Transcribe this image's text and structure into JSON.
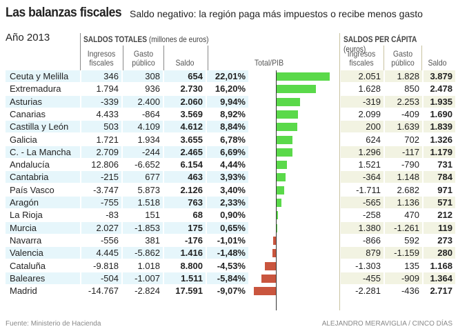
{
  "title": "Las balanzas fiscales",
  "subtitle": "Saldo negativo: la región paga más impuestos o recibe menos gasto",
  "year": "Año 2013",
  "section_totales": {
    "bold": "SALDOS TOTALES",
    "rest": " (millones de euros)"
  },
  "section_percapita": {
    "bold": "SALDOS PER CÁPITA",
    "rest": " (euros)"
  },
  "headers": {
    "ingresos_1": "Ingresos",
    "ingresos_2": "fiscales",
    "gasto_1": "Gasto",
    "gasto_2": "público",
    "saldo": "Saldo",
    "pib": "Total/PIB"
  },
  "colors": {
    "positive": "#5ad94a",
    "negative": "#c9553e",
    "row_alt_left": "#e6f6fb",
    "row_alt_right": "#f2f3e2"
  },
  "chart_data": {
    "type": "table",
    "bar_column": "Total/PIB",
    "rows": [
      {
        "region": "Ceuta y Melilla",
        "ingresos": "346",
        "gasto": "308",
        "saldo": "654",
        "pib": "22,01%",
        "pib_value": 22.01,
        "pc_ingresos": "2.051",
        "pc_gasto": "1.828",
        "pc_saldo": "3.879"
      },
      {
        "region": "Extremadura",
        "ingresos": "1.794",
        "gasto": "936",
        "saldo": "2.730",
        "pib": "16,20%",
        "pib_value": 16.2,
        "pc_ingresos": "1.628",
        "pc_gasto": "850",
        "pc_saldo": "2.478"
      },
      {
        "region": "Asturias",
        "ingresos": "-339",
        "gasto": "2.400",
        "saldo": "2.060",
        "pib": "9,94%",
        "pib_value": 9.94,
        "pc_ingresos": "-319",
        "pc_gasto": "2.253",
        "pc_saldo": "1.935"
      },
      {
        "region": "Canarias",
        "ingresos": "4.433",
        "gasto": "-864",
        "saldo": "3.569",
        "pib": "8,92%",
        "pib_value": 8.92,
        "pc_ingresos": "2.099",
        "pc_gasto": "-409",
        "pc_saldo": "1.690"
      },
      {
        "region": "Castilla y León",
        "ingresos": "503",
        "gasto": "4.109",
        "saldo": "4.612",
        "pib": "8,84%",
        "pib_value": 8.84,
        "pc_ingresos": "200",
        "pc_gasto": "1.639",
        "pc_saldo": "1.839"
      },
      {
        "region": "Galicia",
        "ingresos": "1.721",
        "gasto": "1.934",
        "saldo": "3.655",
        "pib": "6,78%",
        "pib_value": 6.78,
        "pc_ingresos": "624",
        "pc_gasto": "702",
        "pc_saldo": "1.326"
      },
      {
        "region": "C. - La Mancha",
        "ingresos": "2.709",
        "gasto": "-244",
        "saldo": "2.465",
        "pib": "6,69%",
        "pib_value": 6.69,
        "pc_ingresos": "1.296",
        "pc_gasto": "-117",
        "pc_saldo": "1.179"
      },
      {
        "region": "Andalucía",
        "ingresos": "12.806",
        "gasto": "-6.652",
        "saldo": "6.154",
        "pib": "4,44%",
        "pib_value": 4.44,
        "pc_ingresos": "1.521",
        "pc_gasto": "-790",
        "pc_saldo": "731"
      },
      {
        "region": "Cantabria",
        "ingresos": "-215",
        "gasto": "677",
        "saldo": "463",
        "pib": "3,93%",
        "pib_value": 3.93,
        "pc_ingresos": "-364",
        "pc_gasto": "1.148",
        "pc_saldo": "784"
      },
      {
        "region": "País Vasco",
        "ingresos": "-3.747",
        "gasto": "5.873",
        "saldo": "2.126",
        "pib": "3,40%",
        "pib_value": 3.4,
        "pc_ingresos": "-1.711",
        "pc_gasto": "2.682",
        "pc_saldo": "971"
      },
      {
        "region": "Aragón",
        "ingresos": "-755",
        "gasto": "1.518",
        "saldo": "763",
        "pib": "2,33%",
        "pib_value": 2.33,
        "pc_ingresos": "-565",
        "pc_gasto": "1.136",
        "pc_saldo": "571"
      },
      {
        "region": "La Rioja",
        "ingresos": "-83",
        "gasto": "151",
        "saldo": "68",
        "pib": "0,90%",
        "pib_value": 0.9,
        "pc_ingresos": "-258",
        "pc_gasto": "470",
        "pc_saldo": "212"
      },
      {
        "region": "Murcia",
        "ingresos": "2.027",
        "gasto": "-1.853",
        "saldo": "175",
        "pib": "0,65%",
        "pib_value": 0.65,
        "pc_ingresos": "1.380",
        "pc_gasto": "-1.261",
        "pc_saldo": "119"
      },
      {
        "region": "Navarra",
        "ingresos": "-556",
        "gasto": "381",
        "saldo": "-176",
        "pib": "-1,01%",
        "pib_value": -1.01,
        "pc_ingresos": "-866",
        "pc_gasto": "592",
        "pc_saldo": "273"
      },
      {
        "region": "Valencia",
        "ingresos": "4.445",
        "gasto": "-5.862",
        "saldo": "1.416",
        "pib": "-1,48%",
        "pib_value": -1.48,
        "pc_ingresos": "879",
        "pc_gasto": "-1.159",
        "pc_saldo": "280"
      },
      {
        "region": "Cataluña",
        "ingresos": "-9.818",
        "gasto": "1.018",
        "saldo": "8.800",
        "pib": "-4,53%",
        "pib_value": -4.53,
        "pc_ingresos": "-1.303",
        "pc_gasto": "135",
        "pc_saldo": "1.168"
      },
      {
        "region": "Baleares",
        "ingresos": "-504",
        "gasto": "-1.007",
        "saldo": "1.511",
        "pib": "-5,84%",
        "pib_value": -5.84,
        "pc_ingresos": "-455",
        "pc_gasto": "-909",
        "pc_saldo": "1.364"
      },
      {
        "region": "Madrid",
        "ingresos": "-14.767",
        "gasto": "-2.824",
        "saldo": "17.591",
        "pib": "-9,07%",
        "pib_value": -9.07,
        "pc_ingresos": "-2.281",
        "pc_gasto": "-436",
        "pc_saldo": "2.717"
      }
    ]
  },
  "source": "Fuente: Ministerio de Hacienda",
  "credit": "ALEJANDRO MERAVIGLIA / CINCO DÍAS"
}
